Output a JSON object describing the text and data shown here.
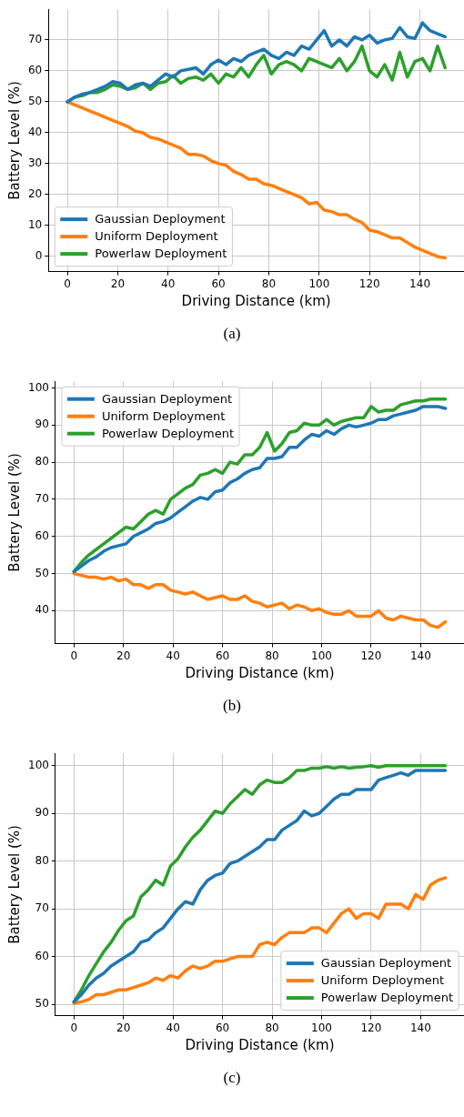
{
  "chart_data": [
    {
      "type": "line",
      "xlabel": "Driving Distance (km)",
      "ylabel": "Battery Level (%)",
      "annotations": [
        "(a)"
      ],
      "xlim": [
        -7.5,
        157.5
      ],
      "xticks": [
        0,
        20,
        40,
        60,
        80,
        100,
        120,
        140
      ],
      "ylim": [
        -4.9,
        79.9
      ],
      "yticks": [
        0,
        10,
        20,
        30,
        40,
        50,
        60,
        70
      ],
      "grid": true,
      "legend": "bottom left",
      "x": [
        0,
        3,
        6,
        9,
        12,
        15,
        18,
        21,
        24,
        27,
        30,
        33,
        36,
        39,
        42,
        45,
        48,
        51,
        54,
        57,
        60,
        63,
        66,
        69,
        72,
        75,
        78,
        81,
        84,
        87,
        90,
        93,
        96,
        99,
        102,
        105,
        108,
        111,
        114,
        117,
        120,
        123,
        126,
        129,
        132,
        135,
        138,
        141,
        144,
        147,
        150
      ],
      "series": [
        {
          "name": "Gaussian Deployment",
          "color": "#1f77b4",
          "values": [
            50,
            51.5,
            52.5,
            53,
            54,
            55,
            56.5,
            56,
            54,
            55.5,
            56,
            55,
            57,
            59,
            58,
            60,
            60.5,
            61,
            59,
            62,
            63.5,
            62,
            64,
            63,
            65,
            66,
            67,
            65,
            64,
            66,
            65,
            68,
            67,
            70,
            73,
            68,
            70,
            68,
            71,
            70,
            71.5,
            69,
            70,
            70.5,
            74,
            71,
            70.5,
            75.5,
            73,
            72,
            71
          ]
        },
        {
          "name": "Uniform Deployment",
          "color": "#ff7f0e",
          "values": [
            50,
            49,
            48,
            47,
            46,
            45,
            44,
            43,
            42,
            40.5,
            40,
            38.5,
            38,
            37,
            36,
            35,
            33,
            33,
            32.5,
            31,
            30,
            29.5,
            27.5,
            26.5,
            25,
            25,
            23.5,
            23,
            22,
            21,
            20,
            19,
            17,
            17.5,
            15,
            14.5,
            13.5,
            13.5,
            12,
            11,
            8.5,
            8,
            7,
            6,
            6,
            4.5,
            3,
            2,
            1,
            0,
            -0.5
          ]
        },
        {
          "name": "Powerlaw Deployment",
          "color": "#2ca02c",
          "values": [
            50,
            51.5,
            52,
            53,
            53,
            54,
            55.5,
            55,
            54,
            54.5,
            56,
            54,
            56,
            56.5,
            58.5,
            56,
            57.5,
            58,
            57,
            59,
            56,
            59,
            58,
            61,
            58,
            62,
            65,
            59,
            62,
            63,
            62,
            60,
            64,
            63,
            62,
            61,
            64,
            60,
            63,
            68,
            60,
            58,
            62,
            57,
            66,
            58,
            63,
            64,
            60,
            68,
            61
          ]
        }
      ]
    },
    {
      "type": "line",
      "xlabel": "Driving Distance (km)",
      "ylabel": "Battery Level (%)",
      "annotations": [
        "(b)"
      ],
      "xlim": [
        -7.5,
        157.5
      ],
      "xticks": [
        0,
        20,
        40,
        60,
        80,
        100,
        120,
        140
      ],
      "ylim": [
        31.1,
        101.8
      ],
      "yticks": [
        40,
        50,
        60,
        70,
        80,
        90,
        100
      ],
      "grid": true,
      "legend": "top left",
      "x": [
        0,
        3,
        6,
        9,
        12,
        15,
        18,
        21,
        24,
        27,
        30,
        33,
        36,
        39,
        42,
        45,
        48,
        51,
        54,
        57,
        60,
        63,
        66,
        69,
        72,
        75,
        78,
        81,
        84,
        87,
        90,
        93,
        96,
        99,
        102,
        105,
        108,
        111,
        114,
        117,
        120,
        123,
        126,
        129,
        132,
        135,
        138,
        141,
        144,
        147,
        150
      ],
      "series": [
        {
          "name": "Gaussian Deployment",
          "color": "#1f77b4",
          "values": [
            50.5,
            52,
            53.5,
            54.5,
            56,
            57,
            57.5,
            58,
            60,
            61,
            62,
            63.5,
            64,
            65,
            66.5,
            68,
            69.5,
            70.5,
            70,
            72,
            72.5,
            74.5,
            75.5,
            77,
            78,
            78.5,
            81,
            81,
            81.5,
            84,
            84,
            86,
            87.5,
            87,
            88.5,
            87.5,
            89,
            90,
            89.5,
            90,
            90.5,
            91.5,
            91.5,
            92.5,
            93,
            93.5,
            94,
            95,
            95,
            95,
            94.5
          ]
        },
        {
          "name": "Uniform Deployment",
          "color": "#ff7f0e",
          "values": [
            50,
            49.5,
            49,
            49,
            48.5,
            49,
            48,
            48.5,
            47,
            47,
            46,
            47,
            47,
            45.5,
            45,
            44.5,
            45,
            44,
            43,
            43.5,
            44,
            43,
            43,
            44,
            42.5,
            42,
            41,
            41.5,
            42,
            40.5,
            41.5,
            41,
            40,
            40.5,
            39.5,
            39,
            39,
            40,
            38.5,
            38.5,
            38.5,
            40,
            38,
            37.5,
            38.5,
            38,
            37.5,
            37.5,
            36,
            35.5,
            37
          ]
        },
        {
          "name": "Powerlaw Deployment",
          "color": "#2ca02c",
          "values": [
            50.5,
            53,
            55,
            56.5,
            58,
            59.5,
            61,
            62.5,
            62,
            64,
            66,
            67,
            66,
            70,
            71.5,
            73,
            74,
            76.5,
            77,
            78,
            77,
            80,
            79.5,
            82,
            82,
            84,
            88,
            83,
            85,
            88,
            88.5,
            90.5,
            90,
            90,
            91.5,
            90,
            91,
            91.5,
            92,
            92,
            95,
            93.5,
            94,
            94,
            95.5,
            96,
            96.5,
            96.5,
            97,
            97,
            97
          ]
        }
      ]
    },
    {
      "type": "line",
      "xlabel": "Driving Distance (km)",
      "ylabel": "Battery Level (%)",
      "annotations": [
        "(c)"
      ],
      "xlim": [
        -7.5,
        157.5
      ],
      "xticks": [
        0,
        20,
        40,
        60,
        80,
        100,
        120,
        140
      ],
      "ylim": [
        47.6,
        102.6
      ],
      "yticks": [
        50,
        60,
        70,
        80,
        90,
        100
      ],
      "grid": true,
      "legend": "bottom right",
      "x": [
        0,
        3,
        6,
        9,
        12,
        15,
        18,
        21,
        24,
        27,
        30,
        33,
        36,
        39,
        42,
        45,
        48,
        51,
        54,
        57,
        60,
        63,
        66,
        69,
        72,
        75,
        78,
        81,
        84,
        87,
        90,
        93,
        96,
        99,
        102,
        105,
        108,
        111,
        114,
        117,
        120,
        123,
        126,
        129,
        132,
        135,
        138,
        141,
        144,
        147,
        150
      ],
      "series": [
        {
          "name": "Gaussian Deployment",
          "color": "#1f77b4",
          "values": [
            50.5,
            52,
            54,
            55.5,
            56.5,
            58,
            59,
            60,
            61,
            63,
            63.5,
            65,
            66,
            68,
            70,
            71.5,
            71,
            74,
            76,
            77,
            77.5,
            79.5,
            80,
            81,
            82,
            83,
            84.5,
            84.5,
            86.5,
            87.5,
            88.5,
            90.5,
            89.5,
            90,
            91.5,
            93,
            94,
            94,
            95,
            95,
            95,
            97,
            97.5,
            98,
            98.5,
            98,
            99,
            99,
            99,
            99,
            99
          ]
        },
        {
          "name": "Uniform Deployment",
          "color": "#ff7f0e",
          "values": [
            50.2,
            50.5,
            51,
            52,
            52,
            52.5,
            53,
            53,
            53.5,
            54,
            54.5,
            55.5,
            55,
            56,
            55.5,
            57,
            58,
            57.5,
            58,
            59,
            59,
            59.5,
            60,
            60,
            60,
            62.5,
            63,
            62.5,
            64,
            65,
            65,
            65,
            66,
            66,
            65,
            67,
            69,
            70,
            68,
            69,
            69,
            68,
            71,
            71,
            71,
            70,
            73,
            72,
            75,
            76,
            76.5
          ]
        },
        {
          "name": "Powerlaw Deployment",
          "color": "#2ca02c",
          "values": [
            50.5,
            53,
            56,
            58.5,
            61,
            63,
            65.5,
            67.5,
            68.5,
            72.5,
            74,
            76,
            75,
            79,
            80.5,
            83,
            85,
            86.5,
            88.5,
            90.5,
            90,
            92,
            93.5,
            95,
            94,
            96,
            97,
            96.5,
            96.5,
            97.5,
            99,
            99,
            99.5,
            99.5,
            99.8,
            99.5,
            99.8,
            99.5,
            99.7,
            99.8,
            100,
            99.7,
            100,
            100,
            100,
            100,
            100,
            100,
            100,
            100,
            100
          ]
        }
      ]
    }
  ]
}
